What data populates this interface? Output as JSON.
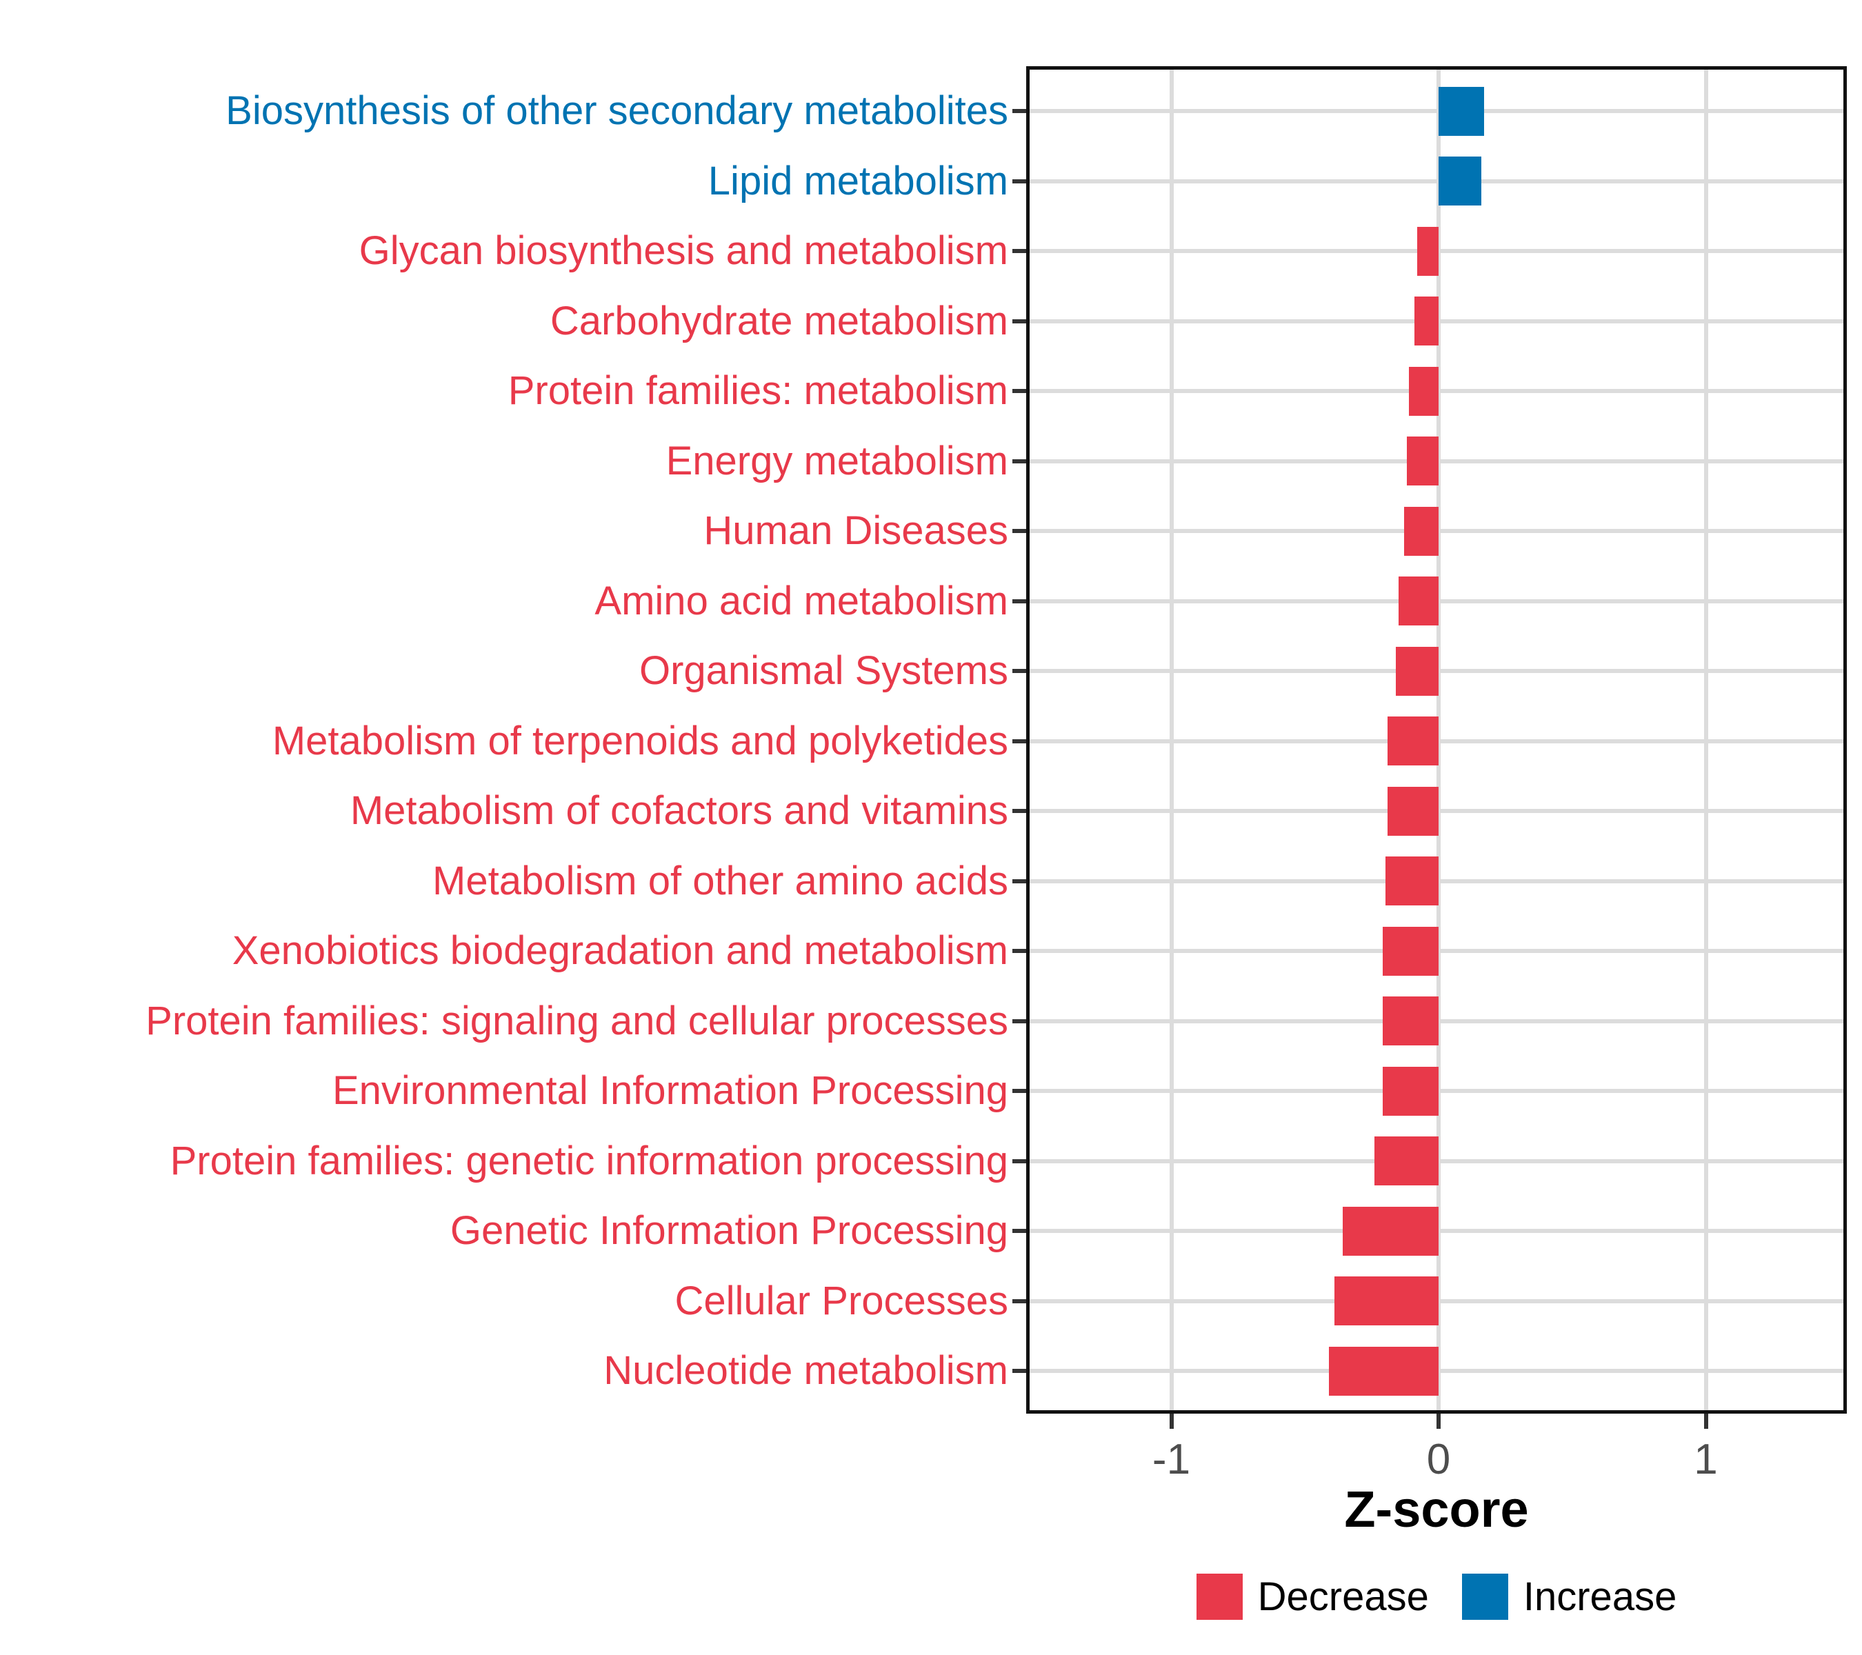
{
  "chart_data": {
    "type": "bar",
    "orientation": "horizontal",
    "title": "",
    "xlabel": "Z-score",
    "ylabel": "",
    "xlim": [
      -1.53,
      1.52
    ],
    "x_ticks": [
      "-1",
      "0",
      "1"
    ],
    "x_tick_values": [
      -1,
      0,
      1
    ],
    "grid": "major-only",
    "legend_position": "bottom-center",
    "categories": [
      "Biosynthesis of other secondary metabolites",
      "Lipid metabolism",
      "Glycan biosynthesis and metabolism",
      "Carbohydrate metabolism",
      "Protein families: metabolism",
      "Energy metabolism",
      "Human Diseases",
      "Amino acid metabolism",
      "Organismal Systems",
      "Metabolism of terpenoids and polyketides",
      "Metabolism of cofactors and vitamins",
      "Metabolism of other amino acids",
      "Xenobiotics biodegradation and metabolism",
      "Protein families: signaling and cellular processes",
      "Environmental Information Processing",
      "Protein families: genetic information processing",
      "Genetic Information Processing",
      "Cellular Processes",
      "Nucleotide metabolism"
    ],
    "values": [
      0.17,
      0.16,
      -0.08,
      -0.09,
      -0.11,
      -0.12,
      -0.13,
      -0.15,
      -0.16,
      -0.19,
      -0.19,
      -0.2,
      -0.21,
      -0.21,
      -0.21,
      -0.24,
      -0.36,
      -0.39,
      -0.41
    ],
    "directions": [
      "Increase",
      "Increase",
      "Decrease",
      "Decrease",
      "Decrease",
      "Decrease",
      "Decrease",
      "Decrease",
      "Decrease",
      "Decrease",
      "Decrease",
      "Decrease",
      "Decrease",
      "Decrease",
      "Decrease",
      "Decrease",
      "Decrease",
      "Decrease",
      "Decrease"
    ],
    "colors": {
      "increase": "#0073B2",
      "decrease": "#E8394A",
      "gridline": "#dcdcdc",
      "panel_border": "#111111",
      "tick": "#333333",
      "tick_label": "#4d4d4d"
    }
  },
  "axis": {
    "x_title": "Z-score"
  },
  "legend": {
    "decrease_label": "Decrease",
    "increase_label": "Increase"
  }
}
